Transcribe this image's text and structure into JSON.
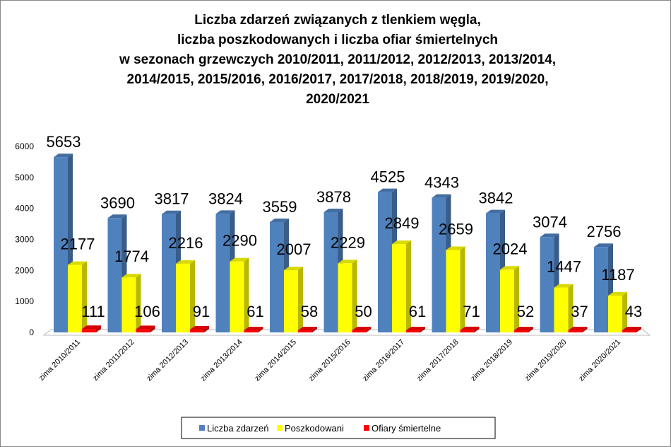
{
  "chart_data": {
    "type": "bar",
    "title": [
      "Liczba zdarzeń związanych z tlenkiem węgla,",
      "liczba poszkodowanych i liczba ofiar śmiertelnych",
      "w sezonach grzewczych 2010/2011, 2011/2012, 2012/2013, 2013/2014,",
      "2014/2015, 2015/2016, 2016/2017, 2017/2018, 2018/2019, 2019/2020,",
      "2020/2021"
    ],
    "categories": [
      "zima 2010/2011",
      "zima 2011/2012",
      "zima 2012/2013",
      "zima 2013/2014",
      "zima 2014/2015",
      "zima 2015/2016",
      "zima 2016/2017",
      "zima 2017/2018",
      "zima 2018/2019",
      "zima 2019/2020",
      "zima 2020/2021"
    ],
    "series": [
      {
        "name": "Liczba zdarzeń",
        "color": "#4f81bd",
        "values": [
          5653,
          3690,
          3817,
          3824,
          3559,
          3878,
          4525,
          4343,
          3842,
          3074,
          2756
        ]
      },
      {
        "name": "Poszkodowani",
        "color": "#ffff00",
        "values": [
          2177,
          1774,
          2216,
          2290,
          2007,
          2229,
          2849,
          2659,
          2024,
          1447,
          1187
        ]
      },
      {
        "name": "Ofiary śmiertelne",
        "color": "#ff0000",
        "values": [
          111,
          106,
          91,
          61,
          58,
          50,
          61,
          71,
          52,
          37,
          43
        ]
      }
    ],
    "yticks": [
      "0",
      "1000",
      "2000",
      "3000",
      "4000",
      "5000",
      "6000"
    ],
    "ylim": [
      0,
      6000
    ],
    "xlabel": "",
    "ylabel": "",
    "grid": false,
    "legend": "bottom",
    "style": "3d-column"
  }
}
